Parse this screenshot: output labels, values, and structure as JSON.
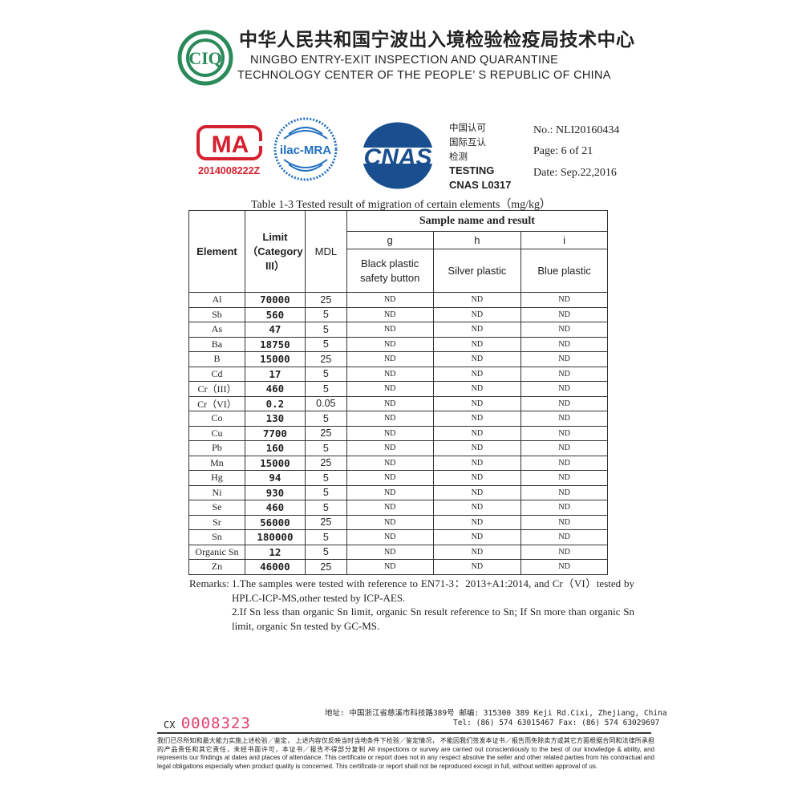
{
  "header": {
    "cn_title": "中华人民共和国宁波出入境检验检疫局技术中心",
    "en_line1": "NINGBO ENTRY-EXIT INSPECTION AND QUARANTINE",
    "en_line2": "TECHNOLOGY CENTER OF THE PEOPLE’ S REPUBLIC OF CHINA",
    "logo_text": "CIQ"
  },
  "accreditation": {
    "cma_text": "MA",
    "cma_number": "2014008222Z",
    "ilac_text": "ilac-MRA",
    "cnas_text": "CNAS",
    "cn_lines": [
      "中国认可",
      "国际互认",
      "检测"
    ],
    "testing": "TESTING",
    "cnas_no": "CNAS L0317"
  },
  "meta": {
    "no": "No.: NLI20160434",
    "page": "Page: 6 of 21",
    "date": "Date: Sep.22,2016"
  },
  "table": {
    "caption": "Table 1-3 Tested result of migration of certain elements（mg/kg）",
    "headers": {
      "element": "Element",
      "limit": "Limit\n（Category\nIII）",
      "mdl": "MDL",
      "sample_group": "Sample name and result",
      "samples": [
        "g",
        "h",
        "i"
      ],
      "sample_names": [
        "Black plastic safety button",
        "Silver plastic",
        "Blue plastic"
      ]
    },
    "rows": [
      [
        "Al",
        "70000",
        "25",
        "ND",
        "ND",
        "ND"
      ],
      [
        "Sb",
        "560",
        "5",
        "ND",
        "ND",
        "ND"
      ],
      [
        "As",
        "47",
        "5",
        "ND",
        "ND",
        "ND"
      ],
      [
        "Ba",
        "18750",
        "5",
        "ND",
        "ND",
        "ND"
      ],
      [
        "B",
        "15000",
        "25",
        "ND",
        "ND",
        "ND"
      ],
      [
        "Cd",
        "17",
        "5",
        "ND",
        "ND",
        "ND"
      ],
      [
        "Cr（III）",
        "460",
        "5",
        "ND",
        "ND",
        "ND"
      ],
      [
        "Cr（VI）",
        "0.2",
        "0.05",
        "ND",
        "ND",
        "ND"
      ],
      [
        "Co",
        "130",
        "5",
        "ND",
        "ND",
        "ND"
      ],
      [
        "Cu",
        "7700",
        "25",
        "ND",
        "ND",
        "ND"
      ],
      [
        "Pb",
        "160",
        "5",
        "ND",
        "ND",
        "ND"
      ],
      [
        "Mn",
        "15000",
        "25",
        "ND",
        "ND",
        "ND"
      ],
      [
        "Hg",
        "94",
        "5",
        "ND",
        "ND",
        "ND"
      ],
      [
        "Ni",
        "930",
        "5",
        "ND",
        "ND",
        "ND"
      ],
      [
        "Se",
        "460",
        "5",
        "ND",
        "ND",
        "ND"
      ],
      [
        "Sr",
        "56000",
        "25",
        "ND",
        "ND",
        "ND"
      ],
      [
        "Sn",
        "180000",
        "5",
        "ND",
        "ND",
        "ND"
      ],
      [
        "Organic Sn",
        "12",
        "5",
        "ND",
        "ND",
        "ND"
      ],
      [
        "Zn",
        "46000",
        "25",
        "ND",
        "ND",
        "ND"
      ]
    ]
  },
  "remarks": {
    "label": "Remarks:",
    "r1": "1.The samples were tested with reference to EN71-3：2013+A1:2014, and Cr（VI）tested by HPLC-ICP-MS,other tested by ICP-AES.",
    "r2": "2.If Sn less than organic Sn limit, organic Sn result reference to Sn; If Sn more than organic Sn limit, organic Sn tested by GC-MS."
  },
  "footer": {
    "cx_prefix": "CX",
    "cx_number": "0008323",
    "address": "地址: 中国浙江省慈溪市科技路389号  邮编: 315300   389 Keji Rd.Cixi, Zhejiang, China",
    "phone": "Tel: (86) 574 63015467     Fax: (86) 574 63029697",
    "disclaimer": "我们已尽所知和最大能力实施上述检验／鉴定，  上述内容仅反映当时当地条件下检验／鉴定情况，  不能因我们签发本证书／报告而免除卖方或其它方面根据合同和法律所承担的产品责任和其它责任，未经书面许可，本证书／报告不得部分复制   All inspections or survey are carried out conscientiously to the best of our knowledge & ability, and represents our findings at dates and places of attendance. This certificate or report does not in any respect absolve the seller and other related parties from his contractual and legal obligations especially when product quality is concerned. This certificate or report shall not be reproduced except in full, without written approval of us."
  }
}
